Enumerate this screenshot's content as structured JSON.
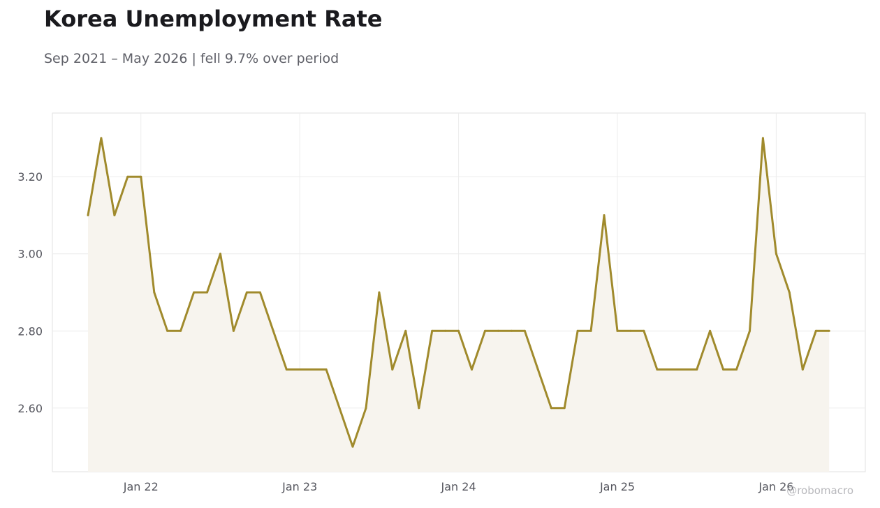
{
  "header": {
    "title": "Korea Unemployment Rate",
    "subtitle": "Sep 2021 – May 2026 | fell 9.7% over period"
  },
  "watermark": "@robomacro",
  "colors": {
    "line": "#a08a2c",
    "fill": "#f7f4ee",
    "grid": "#ececec",
    "frame": "#e2e2e2"
  },
  "chart_data": {
    "type": "area",
    "title": "Korea Unemployment Rate",
    "subtitle": "Sep 2021 – May 2026 | fell 9.7% over period",
    "xlabel": "",
    "ylabel": "",
    "grid": true,
    "ylim": [
      2.435,
      3.365
    ],
    "x_start": "2021-09",
    "x_end": "2026-05",
    "x": [
      "2021-09",
      "2021-10",
      "2021-11",
      "2021-12",
      "2022-01",
      "2022-02",
      "2022-03",
      "2022-04",
      "2022-05",
      "2022-06",
      "2022-07",
      "2022-08",
      "2022-09",
      "2022-10",
      "2022-11",
      "2022-12",
      "2023-01",
      "2023-02",
      "2023-03",
      "2023-04",
      "2023-05",
      "2023-06",
      "2023-07",
      "2023-08",
      "2023-09",
      "2023-10",
      "2023-11",
      "2023-12",
      "2024-01",
      "2024-02",
      "2024-03",
      "2024-04",
      "2024-05",
      "2024-06",
      "2024-07",
      "2024-08",
      "2024-09",
      "2024-10",
      "2024-11",
      "2024-12",
      "2025-01",
      "2025-02",
      "2025-03",
      "2025-04",
      "2025-05",
      "2025-06",
      "2025-07",
      "2025-08",
      "2025-09",
      "2025-10",
      "2025-11",
      "2025-12",
      "2026-01",
      "2026-02",
      "2026-03",
      "2026-04",
      "2026-05"
    ],
    "series": [
      {
        "values": [
          3.1,
          3.3,
          3.1,
          3.2,
          3.2,
          2.9,
          2.8,
          2.8,
          2.9,
          2.9,
          3.0,
          2.8,
          2.9,
          2.9,
          2.8,
          2.7,
          2.7,
          2.7,
          2.7,
          2.6,
          2.5,
          2.6,
          2.9,
          2.7,
          2.8,
          2.6,
          2.8,
          2.8,
          2.8,
          2.7,
          2.8,
          2.8,
          2.8,
          2.8,
          2.7,
          2.6,
          2.6,
          2.8,
          2.8,
          3.1,
          2.8,
          2.8,
          2.8,
          2.7,
          2.7,
          2.7,
          2.7,
          2.8,
          2.7,
          2.7,
          2.8,
          3.3,
          3.0,
          2.9,
          2.7,
          2.8,
          2.8
        ]
      }
    ],
    "y_ticks": [
      {
        "value": 2.6,
        "label": "2.60"
      },
      {
        "value": 2.8,
        "label": "2.80"
      },
      {
        "value": 3.0,
        "label": "3.00"
      },
      {
        "value": 3.2,
        "label": "3.20"
      }
    ],
    "x_ticks": [
      {
        "date": "2022-01",
        "label": "Jan 22"
      },
      {
        "date": "2023-01",
        "label": "Jan 23"
      },
      {
        "date": "2024-01",
        "label": "Jan 24"
      },
      {
        "date": "2025-01",
        "label": "Jan 25"
      },
      {
        "date": "2026-01",
        "label": "Jan 26"
      }
    ]
  }
}
